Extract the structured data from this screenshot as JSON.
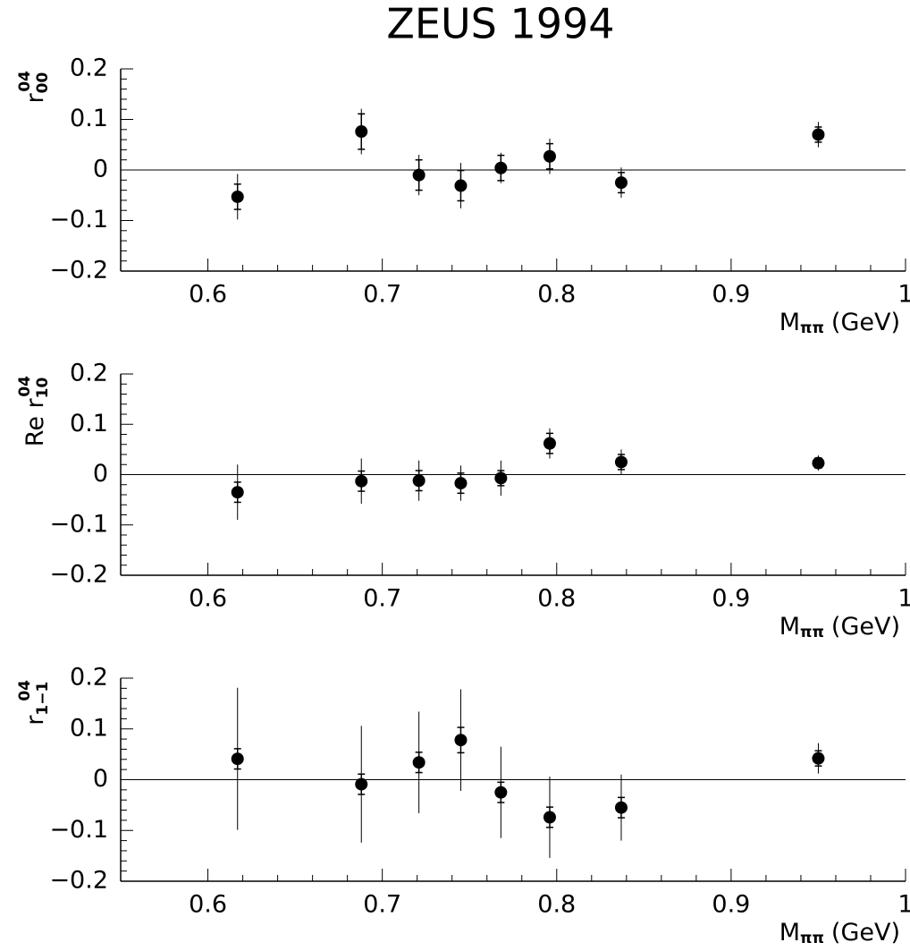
{
  "title": "ZEUS 1994",
  "chart_data": [
    {
      "type": "scatter",
      "ylabel": "r",
      "ylabel_sup": "04",
      "ylabel_sub": "00",
      "xlabel": "M",
      "xlabel_sub": "ππ",
      "xlabel_unit": "(GeV)",
      "x": [
        0.617,
        0.688,
        0.721,
        0.745,
        0.768,
        0.796,
        0.837,
        0.95
      ],
      "values": [
        -0.053,
        0.076,
        -0.01,
        -0.031,
        0.004,
        0.027,
        -0.025,
        0.07
      ],
      "errors": [
        0.025,
        0.035,
        0.03,
        0.03,
        0.025,
        0.025,
        0.02,
        0.015
      ],
      "errors_total": [
        0.045,
        0.045,
        0.04,
        0.045,
        0.03,
        0.035,
        0.03,
        0.025
      ],
      "color": "#000000",
      "zero_line": true,
      "xlim": [
        0.55,
        1.0
      ],
      "xticks": [
        0.6,
        0.7,
        0.8,
        0.9,
        1
      ],
      "ylim": [
        -0.2,
        0.2
      ],
      "yticks": [
        {
          "value": -0.2,
          "label": "−0.2"
        },
        {
          "value": -0.1,
          "label": "−0.1"
        },
        0,
        0.1,
        0.2
      ]
    },
    {
      "type": "scatter",
      "ylabel": "Re r",
      "ylabel_sup": "04",
      "ylabel_sub": "10",
      "xlabel": "M",
      "xlabel_sub": "ππ",
      "xlabel_unit": "(GeV)",
      "x": [
        0.617,
        0.688,
        0.721,
        0.745,
        0.768,
        0.796,
        0.837,
        0.95
      ],
      "values": [
        -0.035,
        -0.013,
        -0.012,
        -0.017,
        -0.007,
        0.062,
        0.025,
        0.023
      ],
      "errors": [
        0.02,
        0.02,
        0.02,
        0.02,
        0.015,
        0.02,
        0.015,
        0.01
      ],
      "errors_total": [
        0.055,
        0.045,
        0.04,
        0.035,
        0.035,
        0.03,
        0.025,
        0.015
      ],
      "color": "#000000",
      "zero_line": true,
      "xlim": [
        0.55,
        1.0
      ],
      "xticks": [
        0.6,
        0.7,
        0.8,
        0.9,
        1
      ],
      "ylim": [
        -0.2,
        0.2
      ],
      "yticks": [
        {
          "value": -0.2,
          "label": "−0.2"
        },
        {
          "value": -0.1,
          "label": "−0.1"
        },
        0,
        0.1,
        0.2
      ]
    },
    {
      "type": "scatter",
      "ylabel": "r",
      "ylabel_sup": "04",
      "ylabel_sub": "1−1",
      "xlabel": "M",
      "xlabel_sub": "ππ",
      "xlabel_unit": "(GeV)",
      "x": [
        0.617,
        0.688,
        0.721,
        0.745,
        0.768,
        0.796,
        0.837,
        0.95
      ],
      "values": [
        0.041,
        -0.009,
        0.034,
        0.078,
        -0.025,
        -0.074,
        -0.055,
        0.042
      ],
      "errors": [
        0.02,
        0.02,
        0.02,
        0.025,
        0.02,
        0.02,
        0.02,
        0.015
      ],
      "errors_total": [
        0.14,
        0.115,
        0.1,
        0.1,
        0.09,
        0.08,
        0.065,
        0.03
      ],
      "color": "#000000",
      "zero_line": true,
      "xlim": [
        0.55,
        1.0
      ],
      "xticks": [
        0.6,
        0.7,
        0.8,
        0.9,
        1
      ],
      "ylim": [
        -0.2,
        0.2
      ],
      "yticks": [
        {
          "value": -0.2,
          "label": "−0.2"
        },
        {
          "value": -0.1,
          "label": "−0.1"
        },
        0,
        0.1,
        0.2
      ]
    }
  ]
}
